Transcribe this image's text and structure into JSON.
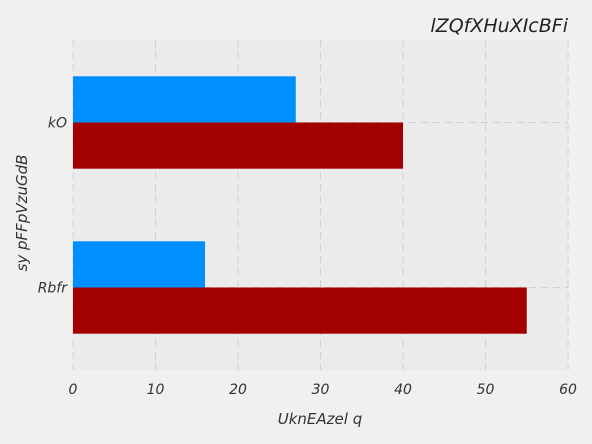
{
  "chart_data": {
    "type": "bar",
    "orientation": "horizontal",
    "title": "lZQfXHuXIcBFi",
    "xlabel": "UknEAzel q",
    "ylabel": "sy  pFFpVzuGdB",
    "categories": [
      "kO",
      "Rbfr"
    ],
    "series": [
      {
        "values": [
          40,
          55
        ],
        "color": "#a30000"
      },
      {
        "values": [
          27,
          16
        ],
        "color": "#008fff"
      }
    ],
    "xlim": [
      0,
      60
    ],
    "xticks": [
      0,
      10,
      20,
      30,
      40,
      50,
      60
    ],
    "grid": true,
    "legend": "none"
  }
}
